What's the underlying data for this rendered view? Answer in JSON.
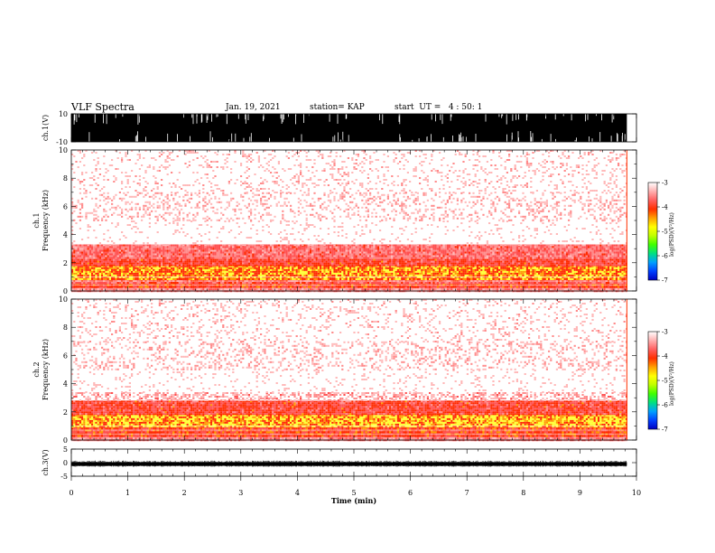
{
  "header": {
    "title": "VLF Spectra",
    "date": "Jan. 19, 2021",
    "station": "station= KAP",
    "start": "start  UT =   4 : 50: 1"
  },
  "colors": {
    "palette": [
      "#0000c0",
      "#0040ff",
      "#00a0ff",
      "#00e080",
      "#40ff00",
      "#c0ff00",
      "#ffff00",
      "#ffa000",
      "#ff3000",
      "#ff6060",
      "#ffb0b0",
      "#ffffff"
    ]
  },
  "chart_data": [
    {
      "type": "line",
      "panel": "ch1-waveform",
      "ylabel": "ch.1(V)",
      "yticks": [
        "10",
        "-10"
      ],
      "ylim": [
        -10,
        10
      ],
      "xlim": [
        0,
        10
      ],
      "data_end_min": 9.83,
      "description_values": {
        "level": "saturated between -10 and 10 V (dense black band)"
      }
    },
    {
      "type": "heatmap",
      "panel": "ch1-spectrogram",
      "ylabel": "ch.1\nFrequency  (kHz)",
      "yticks": [
        "0",
        "2",
        "4",
        "6",
        "8",
        "10"
      ],
      "ylim": [
        0,
        10
      ],
      "xlim": [
        0,
        10
      ],
      "data_end_min": 9.83,
      "z_label": "log(PSD)(V²/Hz)",
      "z_ticks": [
        "-3",
        "-4",
        "-5",
        "-6",
        "-7"
      ],
      "zlim": [
        -7,
        -3
      ],
      "bands_khz": [
        {
          "from": 0.0,
          "to": 0.3,
          "level": 0.55
        },
        {
          "from": 0.3,
          "to": 0.6,
          "level": 0.8
        },
        {
          "from": 0.6,
          "to": 0.9,
          "level": 0.65
        },
        {
          "from": 0.9,
          "to": 1.8,
          "level": 0.95
        },
        {
          "from": 1.8,
          "to": 2.4,
          "level": 0.75
        },
        {
          "from": 2.4,
          "to": 3.3,
          "level": 0.6
        },
        {
          "from": 3.3,
          "to": 5.0,
          "level": 0.25
        },
        {
          "from": 5.0,
          "to": 7.0,
          "level": 0.35
        },
        {
          "from": 7.0,
          "to": 10.0,
          "level": 0.3
        }
      ]
    },
    {
      "type": "heatmap",
      "panel": "ch2-spectrogram",
      "ylabel": "ch.2\nFrequency  (kHz)",
      "yticks": [
        "0",
        "2",
        "4",
        "6",
        "8",
        "10"
      ],
      "ylim": [
        0,
        10
      ],
      "xlim": [
        0,
        10
      ],
      "data_end_min": 9.83,
      "z_label": "log(PSD)(V²/Hz)",
      "z_ticks": [
        "-3",
        "-4",
        "-5",
        "-6",
        "-7"
      ],
      "zlim": [
        -7,
        -3
      ],
      "bands_khz": [
        {
          "from": 0.0,
          "to": 0.3,
          "level": 0.55
        },
        {
          "from": 0.3,
          "to": 0.6,
          "level": 0.8
        },
        {
          "from": 0.6,
          "to": 1.0,
          "level": 0.8
        },
        {
          "from": 1.0,
          "to": 1.8,
          "level": 1.0
        },
        {
          "from": 1.8,
          "to": 2.8,
          "level": 0.75
        },
        {
          "from": 2.8,
          "to": 3.4,
          "level": 0.45
        },
        {
          "from": 3.4,
          "to": 5.0,
          "level": 0.25
        },
        {
          "from": 5.0,
          "to": 7.0,
          "level": 0.35
        },
        {
          "from": 7.0,
          "to": 10.0,
          "level": 0.3
        }
      ]
    },
    {
      "type": "line",
      "panel": "ch3-waveform",
      "ylabel": "ch.3(V)",
      "yticks": [
        "5",
        "0",
        "-5"
      ],
      "ylim": [
        -5,
        5
      ],
      "xlim": [
        0,
        10
      ],
      "data_end_min": 9.83,
      "description_values": {
        "level": "about -0.5 V with small noise"
      }
    }
  ],
  "xaxis": {
    "label": "Time  (min)",
    "ticks": [
      "0",
      "1",
      "2",
      "3",
      "4",
      "5",
      "6",
      "7",
      "8",
      "9",
      "10"
    ]
  }
}
